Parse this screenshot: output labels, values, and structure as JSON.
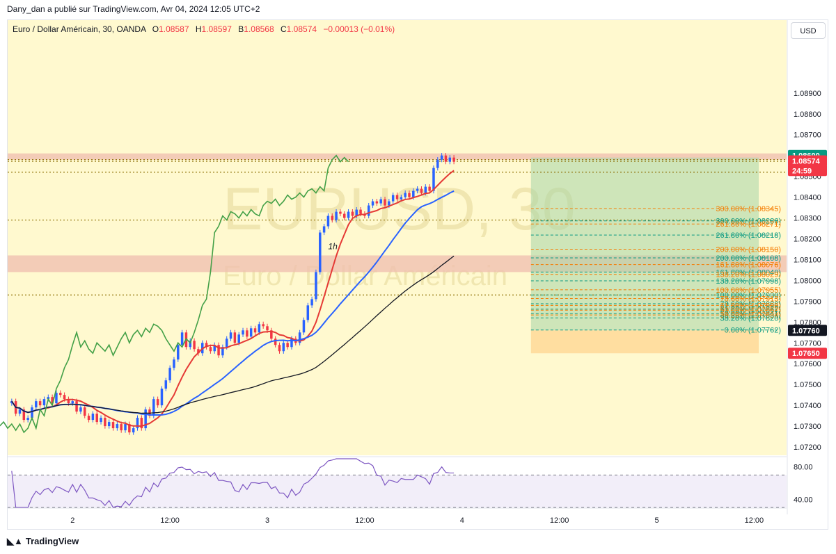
{
  "header": {
    "text": "Dany_dan a publié sur TradingView.com, Avr 04, 2024 12:05 UTC+2"
  },
  "legend": {
    "symbol": "Euro / Dollar Américain, 30, OANDA",
    "o_label": "O",
    "o": "1.08587",
    "h_label": "H",
    "h": "1.08597",
    "l_label": "B",
    "l": "1.08568",
    "c_label": "C",
    "c": "1.08574",
    "change": "−0.00013 (−0.01%)"
  },
  "currency_button": "USD",
  "watermark": {
    "line1": "EURUSD, 30",
    "line2": "Euro / Dollar Américain"
  },
  "annotation": "1h",
  "footer": {
    "brand": "TradingView",
    "logo_icon": "tradingview-logo-icon"
  },
  "colors": {
    "background": "#fff9cf",
    "bull": "#2962ff",
    "bear": "#f23645",
    "lagging_span": "#43a047",
    "base_line": "#2962ff",
    "conversion_line": "#e53935",
    "ma": "#131722",
    "rsi": "#7e57c2",
    "zone": "#f0c0b0",
    "long_position": "#a5d6a7",
    "stop_zone": "#ffcc80"
  },
  "chart_data": {
    "type": "candlestick",
    "title": "Euro / Dollar Américain, 30, OANDA",
    "ylim": [
      1.0716,
      1.0925
    ],
    "y_ticks": [
      "1.08900",
      "1.08800",
      "1.08700",
      "1.08500",
      "1.08400",
      "1.08300",
      "1.08200",
      "1.08100",
      "1.08000",
      "1.07900",
      "1.07800",
      "1.07700",
      "1.07600",
      "1.07500",
      "1.07400",
      "1.07300",
      "1.07200"
    ],
    "x_ticks": [
      "2",
      "12:00",
      "3",
      "12:00",
      "4",
      "12:00",
      "5",
      "12:00"
    ],
    "x_range_bars": [
      0,
      192
    ],
    "x_tick_bars": [
      16,
      40,
      64,
      88,
      112,
      136,
      160,
      184
    ],
    "price_labels": [
      {
        "text": "1.08600",
        "value": 1.086,
        "color": "#089981"
      },
      {
        "text": "1.08574",
        "value": 1.08574,
        "color": "#f23645"
      },
      {
        "text": "24:59",
        "value": 1.08528,
        "color": "#f23645"
      },
      {
        "text": "1.07760",
        "value": 1.0776,
        "color": "#131722"
      },
      {
        "text": "1.07650",
        "value": 1.0765,
        "color": "#f23645"
      }
    ],
    "fib_levels": [
      {
        "label": "300.00% (1.08345)",
        "value": 1.08345,
        "color": "#f57c00"
      },
      {
        "label": "300.00% (1.08286)",
        "value": 1.08286,
        "color": "#089981"
      },
      {
        "label": "261.80% (1.08271)",
        "value": 1.08271,
        "color": "#f57c00"
      },
      {
        "label": "261.80% (1.08218)",
        "value": 1.08218,
        "color": "#089981"
      },
      {
        "label": "200.00% (1.08150)",
        "value": 1.0815,
        "color": "#f57c00"
      },
      {
        "label": "200.00% (1.08108)",
        "value": 1.08108,
        "color": "#089981"
      },
      {
        "label": "161.80% (1.08076)",
        "value": 1.08076,
        "color": "#f57c00"
      },
      {
        "label": "161.80% (1.08040)",
        "value": 1.0804,
        "color": "#089981"
      },
      {
        "label": "138.20% (1.08029)",
        "value": 1.08029,
        "color": "#f57c00"
      },
      {
        "label": "138.20% (1.07998)",
        "value": 1.07998,
        "color": "#089981"
      },
      {
        "label": "100.00% (1.07955)",
        "value": 1.07955,
        "color": "#f57c00"
      },
      {
        "label": "100.00% (1.07930)",
        "value": 1.0793,
        "color": "#089981"
      },
      {
        "label": "78.60% (1.07913)",
        "value": 1.07913,
        "color": "#f57c00"
      },
      {
        "label": "78.60% (1.07888)",
        "value": 1.07888,
        "color": "#089981"
      },
      {
        "label": "61.80% (1.07880)",
        "value": 1.0788,
        "color": "#f57c00"
      },
      {
        "label": "61.80% (1.07862)",
        "value": 1.07862,
        "color": "#089981"
      },
      {
        "label": "50.00% (1.07857)",
        "value": 1.07857,
        "color": "#f57c00"
      },
      {
        "label": "50.00% (1.07841)",
        "value": 1.07841,
        "color": "#089981"
      },
      {
        "label": "38.20% (1.07834)",
        "value": 1.07834,
        "color": "#f57c00"
      },
      {
        "label": "38.20% (1.07820)",
        "value": 1.0782,
        "color": "#089981"
      },
      {
        "label": "0.00% (1.07762)",
        "value": 1.07762,
        "color": "#089981"
      }
    ],
    "horizontal_dotted_levels": [
      1.0858,
      1.08572,
      1.0852,
      1.0829,
      1.0793
    ],
    "zones": [
      {
        "from": 1.0858,
        "to": 1.0861
      },
      {
        "from": 1.0804,
        "to": 1.0812
      }
    ],
    "long_position": {
      "bar_from": 129,
      "bar_to": 253,
      "entry": 1.0776,
      "target": 1.0859,
      "stop": 1.0765
    },
    "ohlc_start": 1.0741,
    "closes": [
      1.0742,
      1.0736,
      1.0738,
      1.0733,
      1.0734,
      1.0739,
      1.0742,
      1.074,
      1.0743,
      1.0744,
      1.0741,
      1.0746,
      1.0745,
      1.0743,
      1.0741,
      1.0742,
      1.0737,
      1.0739,
      1.0735,
      1.0733,
      1.0736,
      1.0732,
      1.0734,
      1.073,
      1.0732,
      1.0729,
      1.0731,
      1.0728,
      1.0731,
      1.0727,
      1.0729,
      1.0734,
      1.0729,
      1.0738,
      1.0735,
      1.0743,
      1.074,
      1.0748,
      1.0752,
      1.0758,
      1.0762,
      1.0769,
      1.0775,
      1.0768,
      1.0771,
      1.0767,
      1.0765,
      1.077,
      1.0768,
      1.0766,
      1.0769,
      1.0764,
      1.0768,
      1.0772,
      1.0775,
      1.077,
      1.0774,
      1.0776,
      1.0773,
      1.0777,
      1.0775,
      1.0779,
      1.0778,
      1.0776,
      1.0772,
      1.0769,
      1.0766,
      1.077,
      1.0768,
      1.0772,
      1.077,
      1.0775,
      1.0781,
      1.0788,
      1.0791,
      1.0804,
      1.0823,
      1.0826,
      1.0831,
      1.0829,
      1.0833,
      1.0832,
      1.083,
      1.0833,
      1.0831,
      1.0834,
      1.0832,
      1.0831,
      1.0836,
      1.0838,
      1.0837,
      1.0839,
      1.0836,
      1.0838,
      1.0841,
      1.0839,
      1.084,
      1.0842,
      1.084,
      1.0843,
      1.0844,
      1.0842,
      1.0845,
      1.0843,
      1.0854,
      1.0858,
      1.086,
      1.0857,
      1.0859,
      1.0857
    ],
    "series_overlays": [
      "Ichimoku Cloud",
      "Moving Average",
      "Lagging Span",
      "Base Line",
      "Conversion Line"
    ],
    "rsi": {
      "ylim": [
        30,
        90
      ],
      "ticks": [
        "80.00",
        "40.00"
      ],
      "upper": 70,
      "lower": 30
    }
  }
}
